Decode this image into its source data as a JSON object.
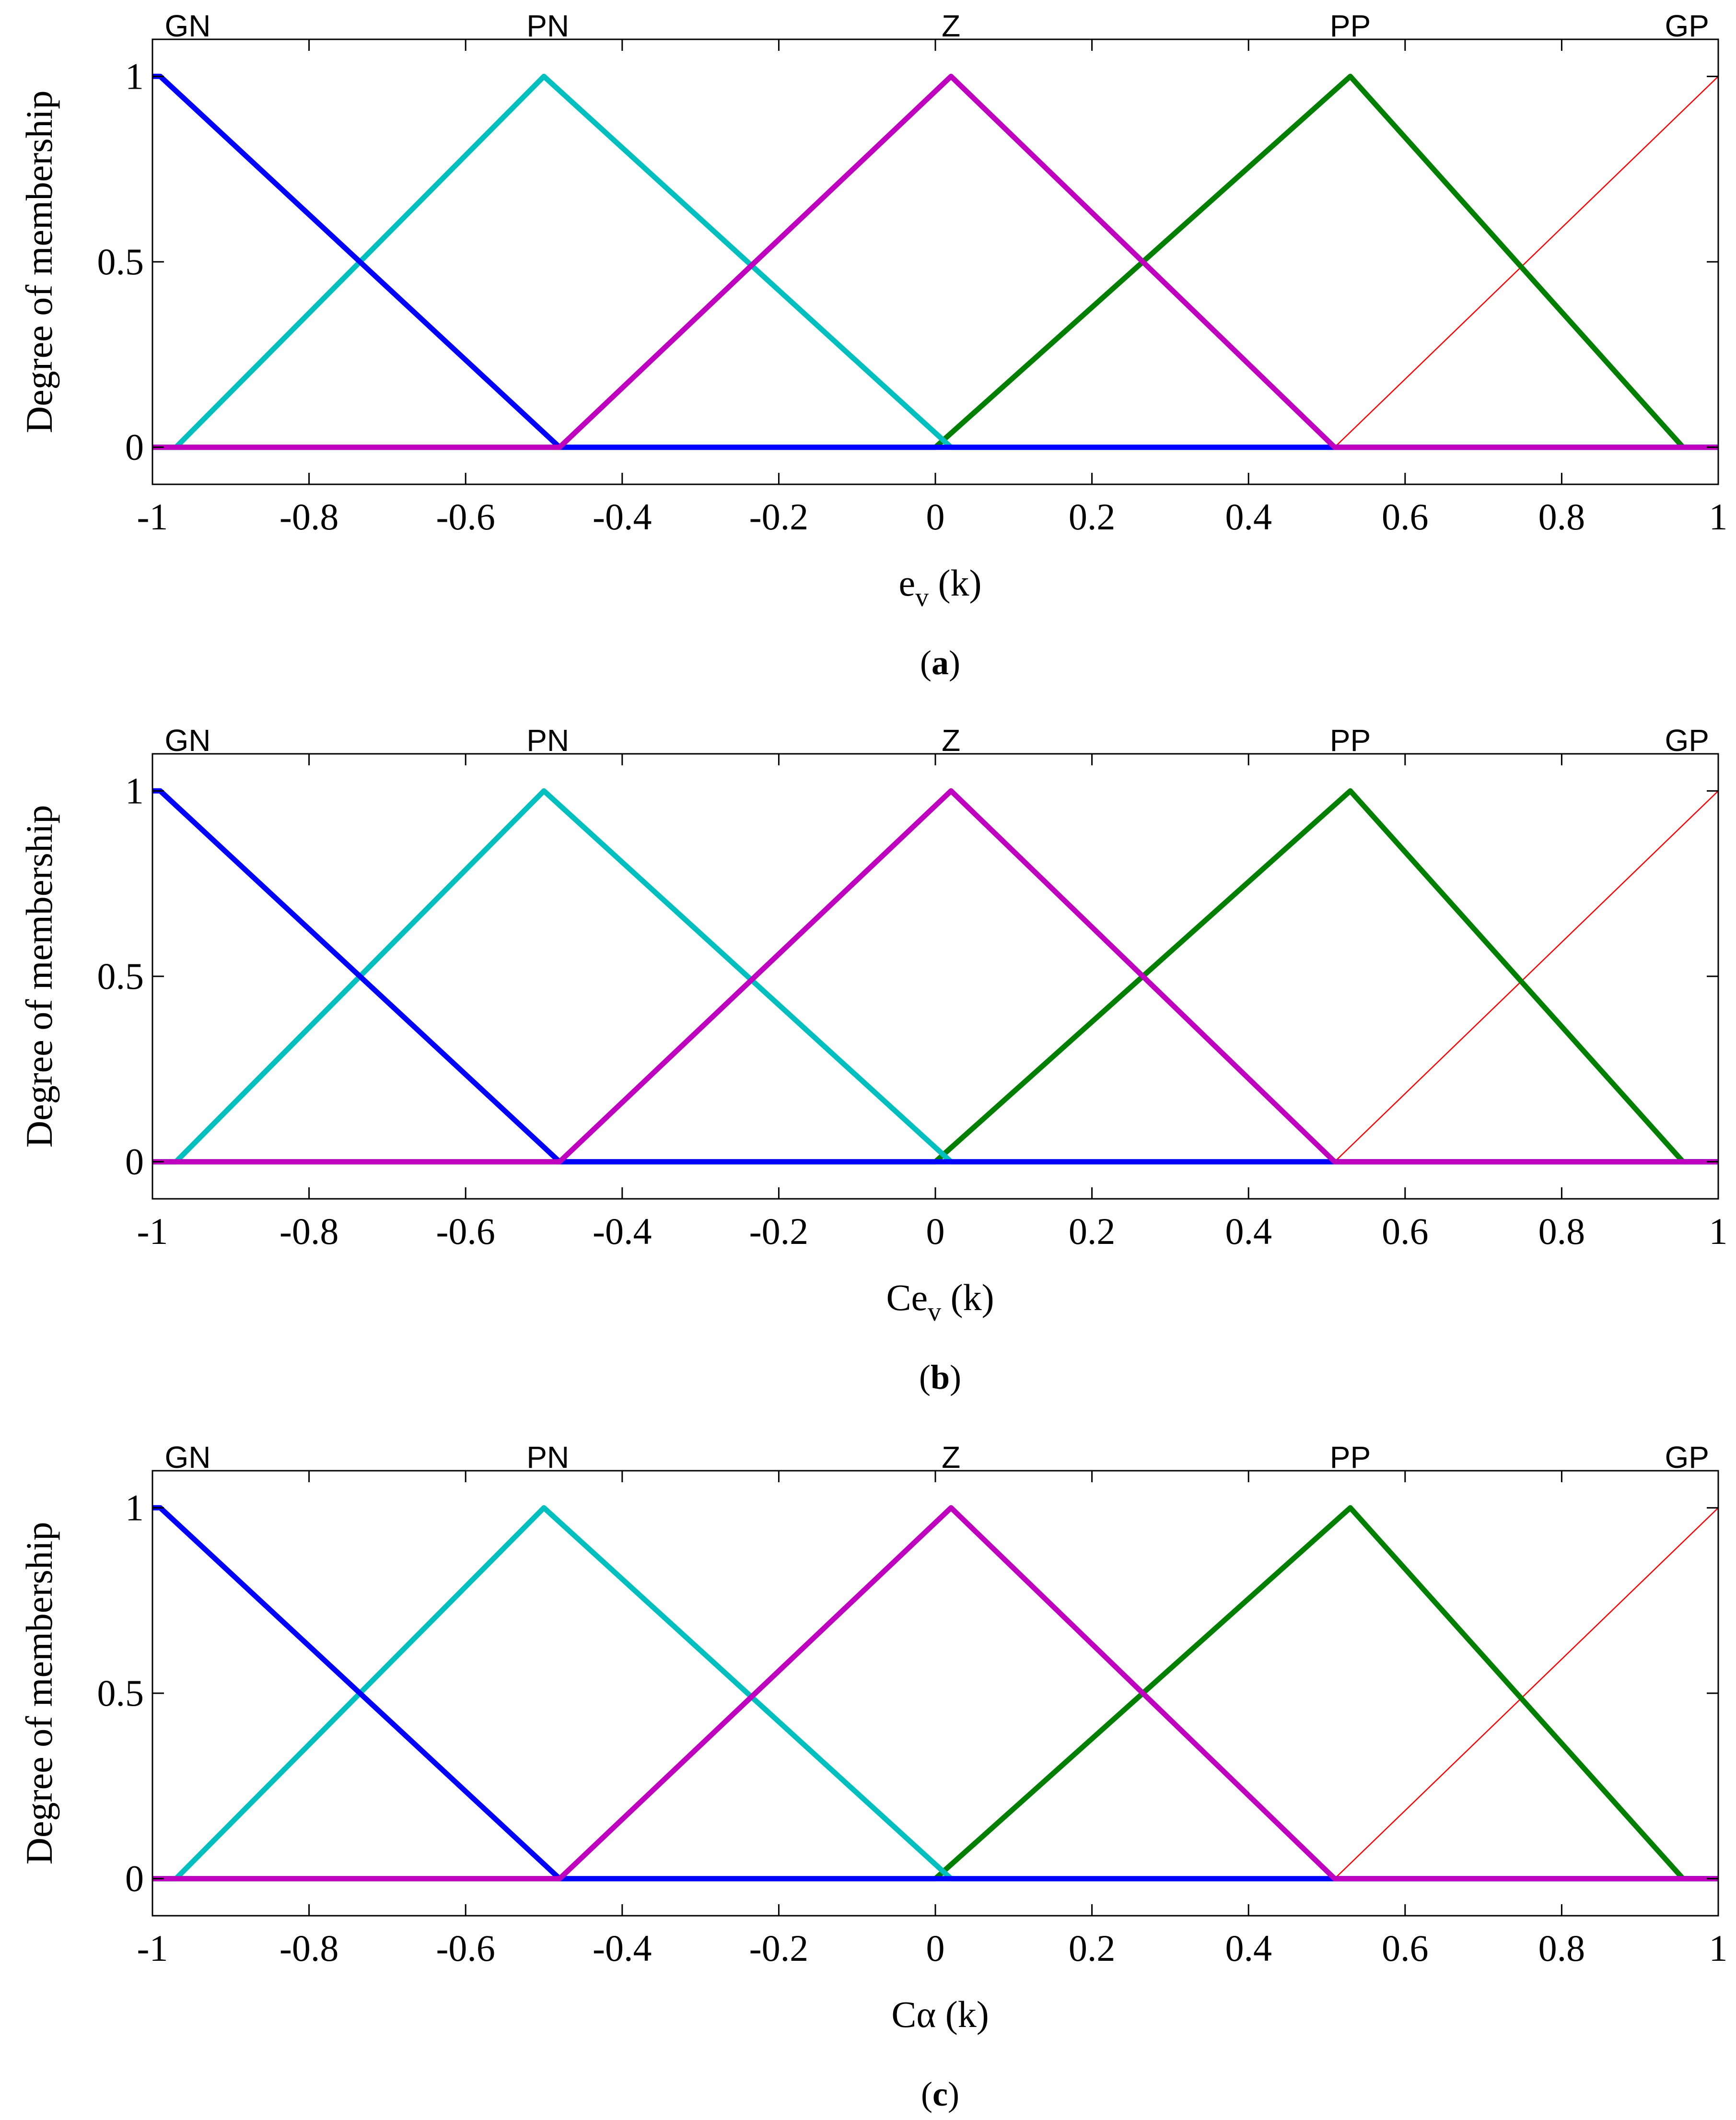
{
  "figure": {
    "panels": [
      {
        "id": "a",
        "caption_letter": "a",
        "caption_open": "(",
        "caption_close": ")",
        "xlabel_main": "e",
        "xlabel_sub": "v",
        "xlabel_rest": " (k)",
        "ylabel": "Degree of membership"
      },
      {
        "id": "b",
        "caption_letter": "b",
        "caption_open": "(",
        "caption_close": ")",
        "xlabel_main": "Ce",
        "xlabel_sub": "v",
        "xlabel_rest": " (k)",
        "ylabel": "Degree of membership"
      },
      {
        "id": "c",
        "caption_letter": "c",
        "caption_open": "(",
        "caption_close": ")",
        "xlabel_main": "Cα",
        "xlabel_sub": "",
        "xlabel_rest": " (k)",
        "ylabel": "Degree of membership"
      }
    ]
  },
  "chart_data": [
    {
      "type": "line",
      "title": "",
      "xlabel": "e_v (k)",
      "ylabel": "Degree of membership",
      "xlim": [
        -1,
        1
      ],
      "ylim": [
        -0.1,
        1.1
      ],
      "xticks": [
        -1,
        -0.8,
        -0.6,
        -0.4,
        -0.2,
        0,
        0.2,
        0.4,
        0.6,
        0.8,
        1
      ],
      "xtick_labels": [
        "-1",
        "-0.8",
        "-0.6",
        "-0.4",
        "-0.2",
        "0",
        "0.2",
        "0.4",
        "0.6",
        "0.8",
        "1"
      ],
      "yticks": [
        0,
        0.5,
        1
      ],
      "ytick_labels": [
        "0",
        "0.5",
        "1"
      ],
      "grid": false,
      "series": [
        {
          "name": "GN",
          "color": "#0000ff",
          "label_x": -0.955,
          "x": [
            -1,
            -0.99,
            -0.48,
            1
          ],
          "y": [
            1,
            1,
            0,
            0
          ]
        },
        {
          "name": "PN",
          "color": "#00bfbf",
          "label_x": -0.495,
          "x": [
            -1,
            -0.97,
            -0.5,
            0.02,
            1
          ],
          "y": [
            0,
            0,
            1,
            0,
            0
          ]
        },
        {
          "name": "Z",
          "color": "#bf00bf",
          "label_x": 0.02,
          "x": [
            -1,
            -0.48,
            0.02,
            0.51,
            1
          ],
          "y": [
            0,
            0,
            1,
            0,
            0
          ]
        },
        {
          "name": "PP",
          "color": "#007f00",
          "label_x": 0.53,
          "x": [
            -1,
            0,
            0.53,
            0.955,
            1
          ],
          "y": [
            0,
            0,
            1,
            0,
            0
          ]
        },
        {
          "name": "GP",
          "color": "#ff0000",
          "label_x": 0.96,
          "x": [
            0.51,
            1
          ],
          "y": [
            0,
            1
          ]
        }
      ]
    },
    {
      "type": "line",
      "title": "",
      "xlabel": "Ce_v (k)",
      "ylabel": "Degree of membership",
      "xlim": [
        -1,
        1
      ],
      "ylim": [
        -0.1,
        1.1
      ],
      "xticks": [
        -1,
        -0.8,
        -0.6,
        -0.4,
        -0.2,
        0,
        0.2,
        0.4,
        0.6,
        0.8,
        1
      ],
      "xtick_labels": [
        "-1",
        "-0.8",
        "-0.6",
        "-0.4",
        "-0.2",
        "0",
        "0.2",
        "0.4",
        "0.6",
        "0.8",
        "1"
      ],
      "yticks": [
        0,
        0.5,
        1
      ],
      "ytick_labels": [
        "0",
        "0.5",
        "1"
      ],
      "grid": false,
      "series": [
        {
          "name": "GN",
          "color": "#0000ff",
          "label_x": -0.955,
          "x": [
            -1,
            -0.99,
            -0.48,
            1
          ],
          "y": [
            1,
            1,
            0,
            0
          ]
        },
        {
          "name": "PN",
          "color": "#00bfbf",
          "label_x": -0.495,
          "x": [
            -1,
            -0.97,
            -0.5,
            0.02,
            1
          ],
          "y": [
            0,
            0,
            1,
            0,
            0
          ]
        },
        {
          "name": "Z",
          "color": "#bf00bf",
          "label_x": 0.02,
          "x": [
            -1,
            -0.48,
            0.02,
            0.51,
            1
          ],
          "y": [
            0,
            0,
            1,
            0,
            0
          ]
        },
        {
          "name": "PP",
          "color": "#007f00",
          "label_x": 0.53,
          "x": [
            -1,
            0,
            0.53,
            0.955,
            1
          ],
          "y": [
            0,
            0,
            1,
            0,
            0
          ]
        },
        {
          "name": "GP",
          "color": "#ff0000",
          "label_x": 0.96,
          "x": [
            0.51,
            1
          ],
          "y": [
            0,
            1
          ]
        }
      ]
    },
    {
      "type": "line",
      "title": "",
      "xlabel": "Cα (k)",
      "ylabel": "Degree of membership",
      "xlim": [
        -1,
        1
      ],
      "ylim": [
        -0.1,
        1.1
      ],
      "xticks": [
        -1,
        -0.8,
        -0.6,
        -0.4,
        -0.2,
        0,
        0.2,
        0.4,
        0.6,
        0.8,
        1
      ],
      "xtick_labels": [
        "-1",
        "-0.8",
        "-0.6",
        "-0.4",
        "-0.2",
        "0",
        "0.2",
        "0.4",
        "0.6",
        "0.8",
        "1"
      ],
      "yticks": [
        0,
        0.5,
        1
      ],
      "ytick_labels": [
        "0",
        "0.5",
        "1"
      ],
      "grid": false,
      "series": [
        {
          "name": "GN",
          "color": "#0000ff",
          "label_x": -0.955,
          "x": [
            -1,
            -0.99,
            -0.48,
            1
          ],
          "y": [
            1,
            1,
            0,
            0
          ]
        },
        {
          "name": "PN",
          "color": "#00bfbf",
          "label_x": -0.495,
          "x": [
            -1,
            -0.97,
            -0.5,
            0.02,
            1
          ],
          "y": [
            0,
            0,
            1,
            0,
            0
          ]
        },
        {
          "name": "Z",
          "color": "#bf00bf",
          "label_x": 0.02,
          "x": [
            -1,
            -0.48,
            0.02,
            0.51,
            1
          ],
          "y": [
            0,
            0,
            1,
            0,
            0
          ]
        },
        {
          "name": "PP",
          "color": "#007f00",
          "label_x": 0.53,
          "x": [
            -1,
            0,
            0.53,
            0.955,
            1
          ],
          "y": [
            0,
            0,
            1,
            0,
            0
          ]
        },
        {
          "name": "GP",
          "color": "#ff0000",
          "label_x": 0.96,
          "x": [
            0.51,
            1
          ],
          "y": [
            0,
            1
          ]
        }
      ]
    }
  ]
}
